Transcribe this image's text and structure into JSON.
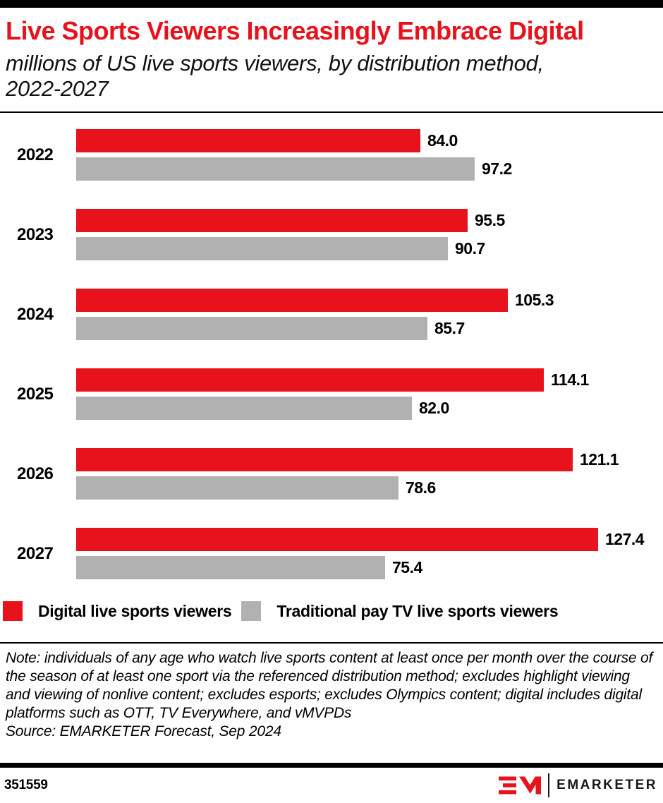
{
  "colors": {
    "accent": "#e8121c",
    "gray": "#b1b1b1",
    "ink": "#000000"
  },
  "header": {
    "title": "Live Sports Viewers Increasingly Embrace Digital",
    "subtitle": "millions of US live sports viewers, by distribution method, 2022-2027"
  },
  "chart_data": {
    "type": "bar",
    "orientation": "horizontal",
    "title": "Live Sports Viewers Increasingly Embrace Digital",
    "subtitle": "millions of US live sports viewers, by distribution method, 2022-2027",
    "categories": [
      "2022",
      "2023",
      "2024",
      "2025",
      "2026",
      "2027"
    ],
    "series": [
      {
        "name": "Digital live sports viewers",
        "color": "#e8121c",
        "values": [
          84.0,
          95.5,
          105.3,
          114.1,
          121.1,
          127.4
        ]
      },
      {
        "name": "Traditional pay TV live sports viewers",
        "color": "#b1b1b1",
        "values": [
          97.2,
          90.7,
          85.7,
          82.0,
          78.6,
          75.4
        ]
      }
    ],
    "value_labels": "one_decimal",
    "xlim": [
      0,
      130
    ],
    "grid": false,
    "legend_position": "bottom"
  },
  "notes": {
    "note": "Note: individuals of any age who watch live sports content at least once per month over the course of the season of at least one sport via the referenced distribution method; excludes highlight viewing and viewing of nonlive content; excludes esports; excludes Olympics content; digital includes digital platforms such as OTT, TV Everywhere, and vMVPDs",
    "source": "Source: EMARKETER Forecast, Sep 2024"
  },
  "footer": {
    "chart_id": "351559",
    "brand_monogram": "EM",
    "brand_word": "EMARKETER"
  }
}
